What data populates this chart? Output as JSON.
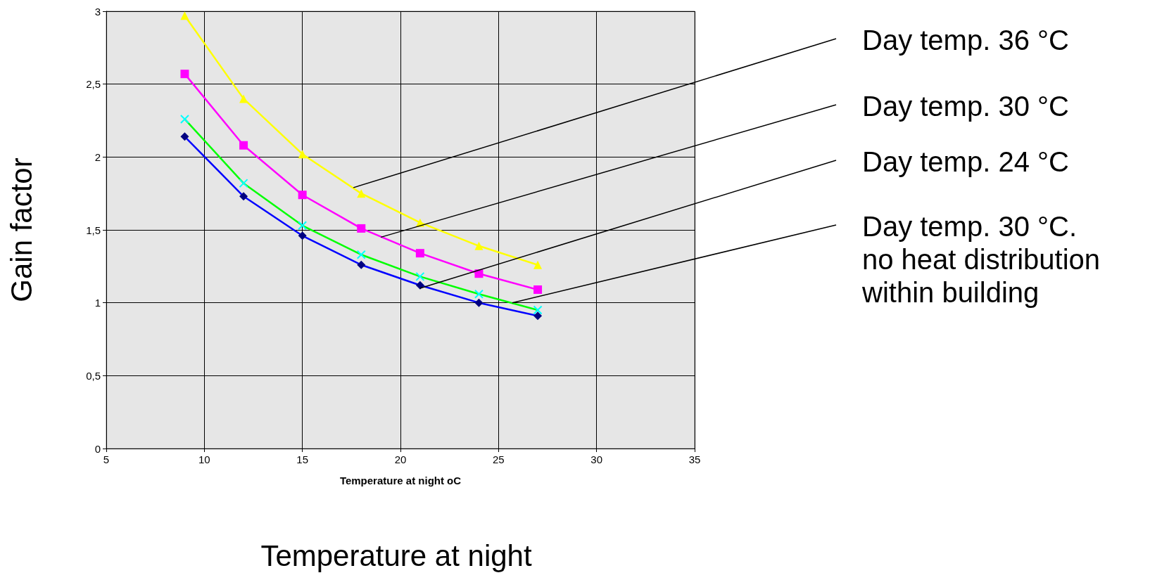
{
  "chart_data": {
    "type": "line",
    "ylabel": "Gain factor",
    "xlabel": "Temperature at night oC",
    "x": [
      9,
      12,
      15,
      18,
      21,
      24,
      27
    ],
    "xlim": [
      5,
      35
    ],
    "xticks": [
      5,
      10,
      15,
      20,
      25,
      30,
      35
    ],
    "ylim": [
      0,
      3
    ],
    "yticks": [
      0,
      {
        "value": 0.5,
        "label": "0,5"
      },
      1,
      {
        "value": 1.5,
        "label": "1,5"
      },
      2,
      {
        "value": 2.5,
        "label": "2,5"
      },
      3
    ],
    "grid": true,
    "series": [
      {
        "color": "#ffff00",
        "marker": "triangle",
        "values": [
          2.97,
          2.4,
          2.02,
          1.75,
          1.55,
          1.39,
          1.26
        ]
      },
      {
        "color": "#ff00ff",
        "marker": "square",
        "values": [
          2.57,
          2.08,
          1.74,
          1.51,
          1.34,
          1.2,
          1.09
        ]
      },
      {
        "color": "#00ff00",
        "colors": [
          "#00ffff",
          "#00ffff",
          "#00ffff",
          "#00ffff",
          "#00ffff",
          "#00ffff",
          "#00ffff"
        ],
        "marker": "cross",
        "values": [
          2.26,
          1.82,
          1.53,
          1.33,
          1.18,
          1.06,
          0.95
        ]
      },
      {
        "color": "#0000ff",
        "colors": [
          "#000080",
          "#000080",
          "#000080",
          "#000080",
          "#000080",
          "#000080",
          "#000080"
        ],
        "marker": "diamond",
        "values": [
          2.14,
          1.73,
          1.46,
          1.26,
          1.12,
          1.0,
          0.91
        ]
      }
    ],
    "annotations": [
      {
        "text": "Day temp. 36 °C",
        "x": 17.6,
        "y": 1.79
      },
      {
        "text": "Day temp. 30 °C",
        "x": 19,
        "y": 1.45
      },
      {
        "text": "Day temp. 24 °C",
        "x": 21,
        "y": 1.1
      },
      {
        "text": "Day temp. 30 °C.\nno heat distribution\nwithin building",
        "x": 25.7,
        "y": 1.0
      },
      "Temperature at night"
    ]
  }
}
